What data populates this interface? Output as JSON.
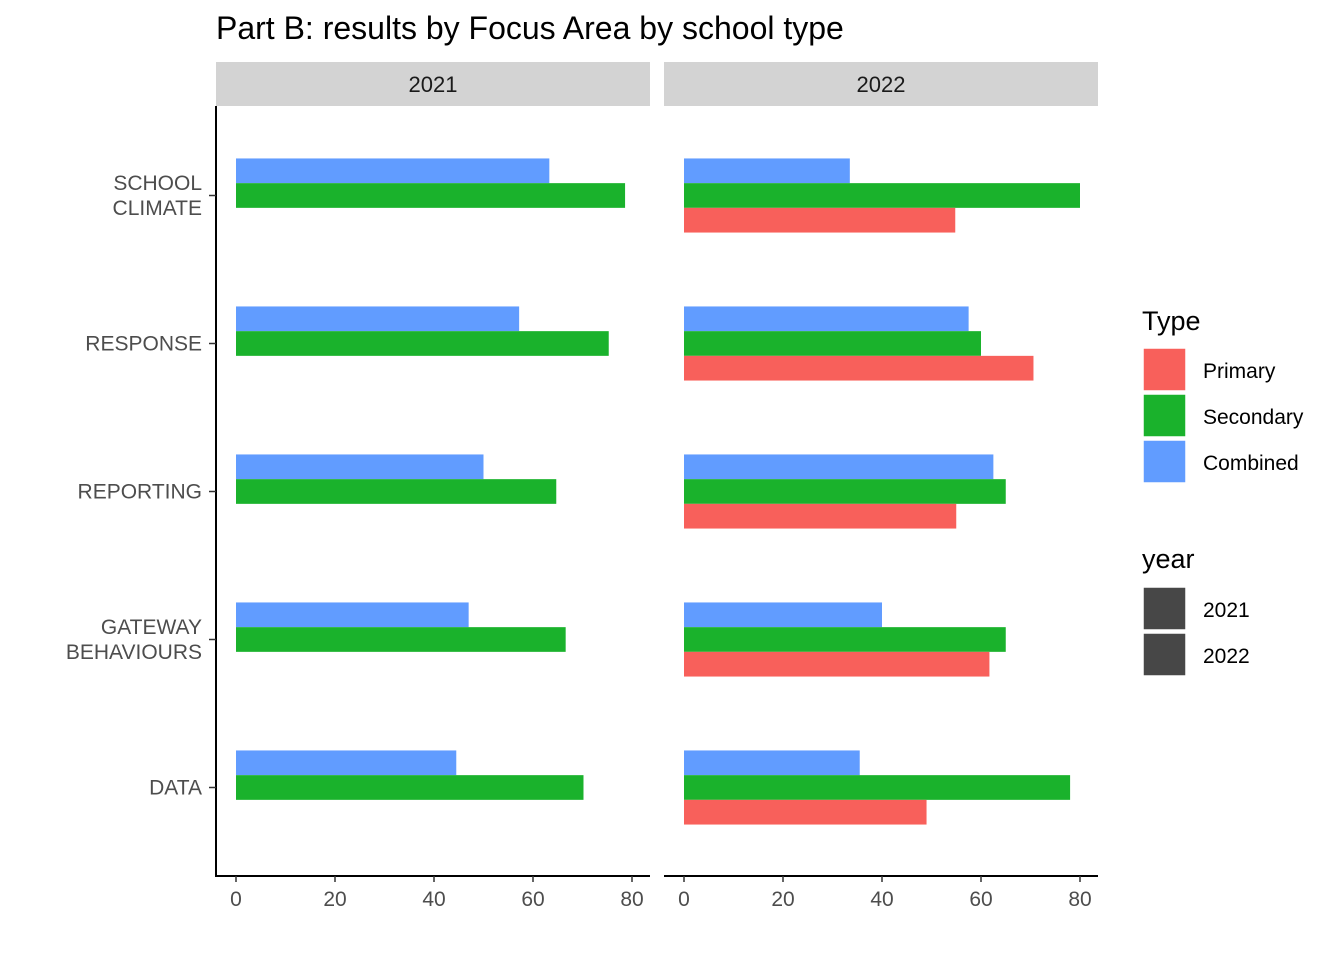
{
  "chart_data": {
    "type": "bar",
    "orientation": "horizontal",
    "title": "Part B: results by Focus Area by school type",
    "facet_by": "year",
    "facets": [
      "2021",
      "2022"
    ],
    "categories": [
      "SCHOOL CLIMATE",
      "RESPONSE",
      "REPORTING",
      "GATEWAY BEHAVIOURS",
      "DATA"
    ],
    "category_labels": [
      [
        "SCHOOL",
        "CLIMATE"
      ],
      [
        "RESPONSE"
      ],
      [
        "REPORTING"
      ],
      [
        "GATEWAY",
        "BEHAVIOURS"
      ],
      [
        "DATA"
      ]
    ],
    "xlim": [
      0,
      84
    ],
    "x_ticks": [
      0,
      20,
      40,
      60,
      80
    ],
    "series": [
      {
        "name": "Combined",
        "color": "#619CFF",
        "values": {
          "2021": [
            63.3,
            57.2,
            50.0,
            47.0,
            44.5
          ],
          "2022": [
            33.5,
            57.5,
            62.5,
            40.0,
            35.5
          ]
        }
      },
      {
        "name": "Secondary",
        "color": "#1AB22C",
        "values": {
          "2021": [
            78.6,
            75.3,
            64.7,
            66.6,
            70.2
          ],
          "2022": [
            80.0,
            60.0,
            65.0,
            65.0,
            78.0
          ]
        }
      },
      {
        "name": "Primary",
        "color": "#F8605B",
        "values": {
          "2021": [
            null,
            null,
            null,
            null,
            null
          ],
          "2022": [
            54.8,
            70.6,
            55.0,
            61.7,
            49.0
          ]
        }
      }
    ],
    "legend": {
      "placement": "right",
      "type_title": "Type",
      "type_entries": [
        {
          "label": "Primary",
          "color": "#F8605B"
        },
        {
          "label": "Secondary",
          "color": "#1AB22C"
        },
        {
          "label": "Combined",
          "color": "#619CFF"
        }
      ],
      "year_title": "year",
      "year_entries": [
        {
          "label": "2021",
          "color": "#474747"
        },
        {
          "label": "2022",
          "color": "#474747"
        }
      ]
    },
    "strip_color": "#D3D3D3"
  }
}
